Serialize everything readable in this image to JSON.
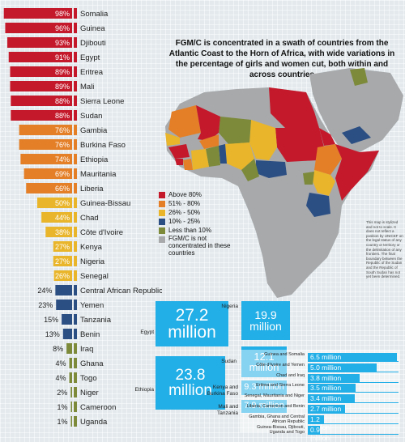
{
  "chart_data": [
    {
      "type": "bar",
      "orientation": "horizontal",
      "categories": [
        "Somalia",
        "Guinea",
        "Djibouti",
        "Egypt",
        "Eritrea",
        "Mali",
        "Sierra Leone",
        "Sudan",
        "Gambia",
        "Burkina Faso",
        "Ethiopia",
        "Mauritania",
        "Liberia",
        "Guinea-Bissau",
        "Chad",
        "Côte d'Ivoire",
        "Kenya",
        "Nigeria",
        "Senegal",
        "Central African Republic",
        "Yemen",
        "Tanzania",
        "Benin",
        "Iraq",
        "Ghana",
        "Togo",
        "Niger",
        "Cameroon",
        "Uganda"
      ],
      "values": [
        98,
        96,
        93,
        91,
        89,
        89,
        88,
        88,
        76,
        76,
        74,
        69,
        66,
        50,
        44,
        38,
        27,
        27,
        26,
        24,
        23,
        15,
        13,
        8,
        4,
        4,
        2,
        1,
        1
      ],
      "labels": [
        "98%",
        "96%",
        "93%",
        "91%",
        "89%",
        "89%",
        "88%",
        "88%",
        "76%",
        "76%",
        "74%",
        "69%",
        "66%",
        "50%",
        "44%",
        "38%",
        "27%",
        "27%",
        "26%",
        "24%",
        "23%",
        "15%",
        "13%",
        "8%",
        "4%",
        "4%",
        "2%",
        "1%",
        "1%"
      ],
      "ylim": [
        0,
        100
      ]
    },
    {
      "type": "bar",
      "orientation": "horizontal",
      "unit": "million",
      "categories": [
        "Egypt",
        "Ethiopia",
        "Nigeria",
        "Sudan",
        "Kenya and Burkina Faso",
        "Mali and Tanzania",
        "Guinea and Somalia",
        "Côte d'Ivoire and Yemen",
        "Chad and Iraq",
        "Eritrea and Sierra Leone",
        "Senegal, Mauritania and Niger",
        "Liberia, Cameroon and Benin",
        "Gambia, Ghana and Central African Republic",
        "Guinea-Bissau, Djibouti, Uganda and Togo"
      ],
      "values": [
        27.2,
        23.8,
        19.9,
        12.1,
        9.3,
        7.9,
        6.5,
        5.0,
        3.8,
        3.5,
        3.4,
        2.7,
        1.2,
        0.9
      ],
      "labels": [
        "27.2 million",
        "23.8 million",
        "19.9 million",
        "12.1 million",
        "9.3 million",
        "7.9 million",
        "6.5 million",
        "5.0 million",
        "3.8 million",
        "3.5 million",
        "3.4 million",
        "2.7 million",
        "1.2 million",
        "0.9 million"
      ]
    }
  ],
  "headline": "FGM/C is concentrated in a swath of countries from the Atlantic Coast to the Horn of Africa, with wide variations in the percentage of girls and women cut, both within and across countries",
  "legend": [
    {
      "label": "Above 80%",
      "color": "#c4192b"
    },
    {
      "label": "51% - 80%",
      "color": "#e47f27"
    },
    {
      "label": "26% - 50%",
      "color": "#e9b52a"
    },
    {
      "label": "10% - 25%",
      "color": "#2b4e83"
    },
    {
      "label": "Less than 10%",
      "color": "#7c8a3a"
    },
    {
      "label": "FGM/C is not concentrated in these countries",
      "color": "#a7a9ab"
    }
  ],
  "colors": {
    "above80": "#c4192b",
    "r51_80": "#e47f27",
    "r26_50": "#e9b52a",
    "r10_25": "#2b4e83",
    "below10": "#7c8a3a",
    "not_concentrated": "#a7a9ab",
    "highlight": "#22aee6"
  },
  "disclaimer": "This map is stylized and not to scale. It does not reflect a position by UNICEF on the legal status of any country or territory or the delimitation of any frontiers. The final boundary between the Republic of the Sudan and the Republic of South Sudan has not yet been determined."
}
